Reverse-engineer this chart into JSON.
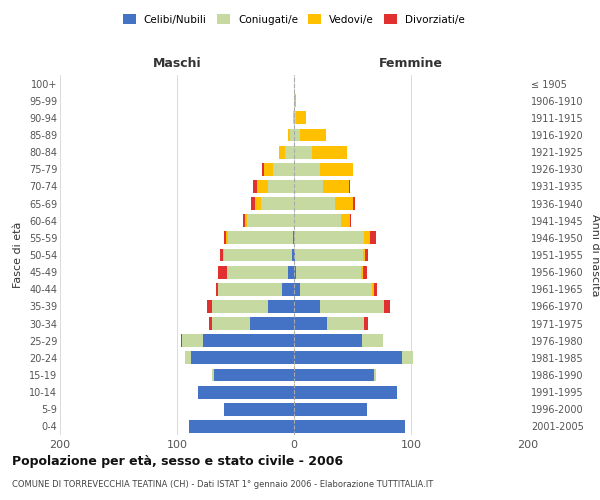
{
  "age_groups": [
    "0-4",
    "5-9",
    "10-14",
    "15-19",
    "20-24",
    "25-29",
    "30-34",
    "35-39",
    "40-44",
    "45-49",
    "50-54",
    "55-59",
    "60-64",
    "65-69",
    "70-74",
    "75-79",
    "80-84",
    "85-89",
    "90-94",
    "95-99",
    "100+"
  ],
  "birth_years": [
    "2001-2005",
    "1996-2000",
    "1991-1995",
    "1986-1990",
    "1981-1985",
    "1976-1980",
    "1971-1975",
    "1966-1970",
    "1961-1965",
    "1956-1960",
    "1951-1955",
    "1946-1950",
    "1941-1945",
    "1936-1940",
    "1931-1935",
    "1926-1930",
    "1921-1925",
    "1916-1920",
    "1911-1915",
    "1906-1910",
    "≤ 1905"
  ],
  "male": {
    "celibi": [
      90,
      60,
      82,
      68,
      88,
      78,
      38,
      22,
      10,
      5,
      2,
      1,
      0,
      0,
      0,
      0,
      0,
      0,
      0,
      0,
      0
    ],
    "coniugati": [
      0,
      0,
      0,
      2,
      5,
      18,
      32,
      48,
      55,
      52,
      58,
      55,
      40,
      28,
      22,
      18,
      8,
      3,
      1,
      0,
      0
    ],
    "vedovi": [
      0,
      0,
      0,
      0,
      0,
      0,
      0,
      0,
      0,
      0,
      1,
      2,
      2,
      5,
      10,
      8,
      5,
      2,
      0,
      0,
      0
    ],
    "divorziati": [
      0,
      0,
      0,
      0,
      0,
      1,
      3,
      4,
      2,
      8,
      2,
      2,
      2,
      4,
      3,
      1,
      0,
      0,
      0,
      0,
      0
    ]
  },
  "female": {
    "nubili": [
      95,
      62,
      88,
      68,
      92,
      58,
      28,
      22,
      5,
      2,
      1,
      0,
      0,
      0,
      0,
      0,
      0,
      0,
      0,
      0,
      0
    ],
    "coniugate": [
      0,
      0,
      0,
      2,
      10,
      18,
      32,
      55,
      62,
      55,
      58,
      60,
      40,
      35,
      25,
      22,
      15,
      5,
      2,
      1,
      0
    ],
    "vedove": [
      0,
      0,
      0,
      0,
      0,
      0,
      0,
      0,
      1,
      2,
      2,
      5,
      8,
      15,
      22,
      28,
      30,
      22,
      8,
      1,
      0
    ],
    "divorziate": [
      0,
      0,
      0,
      0,
      0,
      0,
      3,
      5,
      3,
      3,
      2,
      5,
      1,
      2,
      1,
      0,
      0,
      0,
      0,
      0,
      0
    ]
  },
  "colors": {
    "celibi_nubili": "#4472c4",
    "coniugati": "#c5d9a0",
    "vedovi": "#ffc000",
    "divorziati": "#e03030"
  },
  "title": "Popolazione per età, sesso e stato civile - 2006",
  "subtitle": "COMUNE DI TORREVECCHIA TEATINA (CH) - Dati ISTAT 1° gennaio 2006 - Elaborazione TUTTITALIA.IT",
  "xlim": 200,
  "bg_color": "#ffffff",
  "grid_color": "#cccccc"
}
